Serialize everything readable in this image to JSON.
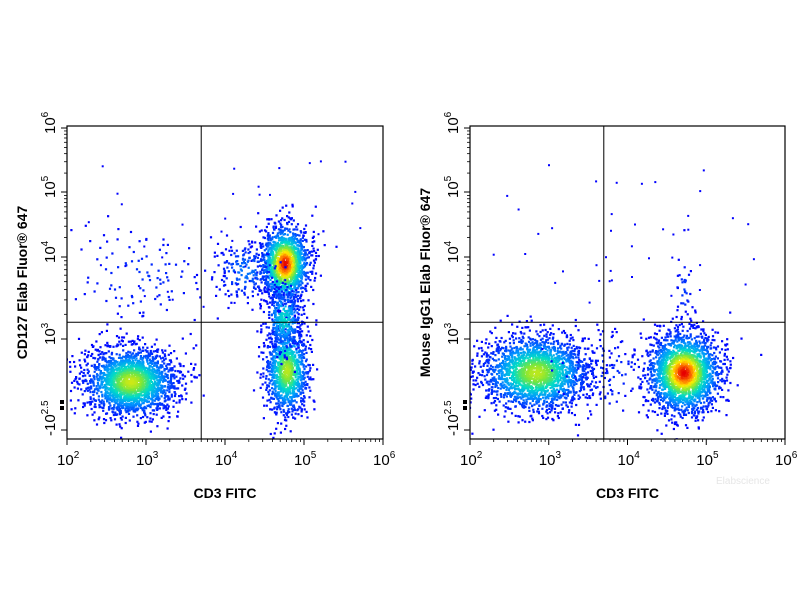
{
  "chart_data": [
    {
      "type": "scatter",
      "subtype": "flow-cytometry-density-dot-plot",
      "xlabel": "CD3 FITC",
      "ylabel": "CD127 Elab Fluor® 647",
      "x_scale": "log",
      "y_scale": "biexponential",
      "x_ticks": [
        {
          "base": "10",
          "exp": "2",
          "value": 100
        },
        {
          "base": "10",
          "exp": "3",
          "value": 1000
        },
        {
          "base": "10",
          "exp": "4",
          "value": 10000
        },
        {
          "base": "10",
          "exp": "5",
          "value": 100000
        },
        {
          "base": "10",
          "exp": "6",
          "value": 1000000
        }
      ],
      "y_ticks": [
        {
          "base": "-10",
          "exp": "2.5",
          "value": -316
        },
        {
          "base": "10",
          "exp": "3",
          "value": 1000
        },
        {
          "base": "10",
          "exp": "4",
          "value": 10000
        },
        {
          "base": "10",
          "exp": "5",
          "value": 100000
        },
        {
          "base": "10",
          "exp": "6",
          "value": 1000000
        }
      ],
      "xlim": [
        100,
        1000000
      ],
      "ylim": [
        -1000,
        1000000
      ],
      "quadrant_gate": {
        "x": 5000,
        "y": 1600
      },
      "populations": [
        {
          "label": "CD3- CD127-",
          "x_center": 600,
          "y_center": 250,
          "density": "high"
        },
        {
          "label": "CD3+ CD127+",
          "x_center": 50000,
          "y_center": 7000,
          "density": "very high"
        },
        {
          "label": "CD3+ CD127-",
          "x_center": 50000,
          "y_center": 200,
          "density": "high"
        },
        {
          "label": "CD3- CD127+",
          "x_center": 1000,
          "y_center": 8000,
          "density": "low"
        }
      ]
    },
    {
      "type": "scatter",
      "subtype": "flow-cytometry-density-dot-plot",
      "xlabel": "CD3 FITC",
      "ylabel": "Mouse IgG1 Elab Fluor® 647",
      "x_scale": "log",
      "y_scale": "biexponential",
      "x_ticks": [
        {
          "base": "10",
          "exp": "2",
          "value": 100
        },
        {
          "base": "10",
          "exp": "3",
          "value": 1000
        },
        {
          "base": "10",
          "exp": "4",
          "value": 10000
        },
        {
          "base": "10",
          "exp": "5",
          "value": 100000
        },
        {
          "base": "10",
          "exp": "6",
          "value": 1000000
        }
      ],
      "y_ticks": [
        {
          "base": "-10",
          "exp": "2.5",
          "value": -316
        },
        {
          "base": "10",
          "exp": "3",
          "value": 1000
        },
        {
          "base": "10",
          "exp": "4",
          "value": 10000
        },
        {
          "base": "10",
          "exp": "5",
          "value": 100000
        },
        {
          "base": "10",
          "exp": "6",
          "value": 1000000
        }
      ],
      "xlim": [
        100,
        1000000
      ],
      "ylim": [
        -1000,
        1000000
      ],
      "quadrant_gate": {
        "x": 5000,
        "y": 1600
      },
      "populations": [
        {
          "label": "CD3- isotype",
          "x_center": 600,
          "y_center": 300,
          "density": "high"
        },
        {
          "label": "CD3+ isotype",
          "x_center": 50000,
          "y_center": 300,
          "density": "very high"
        }
      ]
    }
  ],
  "watermark": "Elabscience"
}
